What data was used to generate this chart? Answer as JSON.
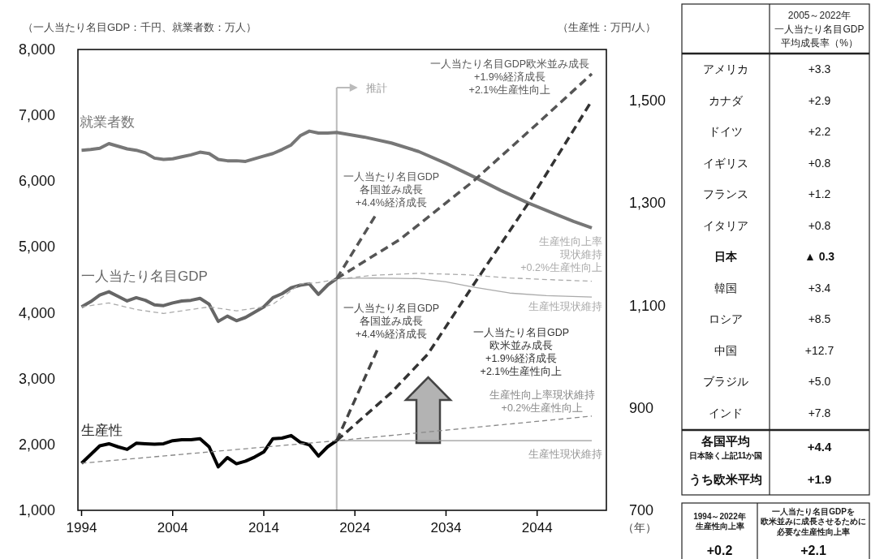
{
  "chart_data": [
    {
      "type": "line",
      "ylabel": "（一人当たり名目GDP：千円、就業者数：万人）",
      "y2label": "（生産性：万円/人）",
      "xlabel": "（年）",
      "xlim": [
        1993.6,
        2051.6
      ],
      "xticks": [
        1994,
        2004,
        2014,
        2024,
        2034,
        2044
      ],
      "ylim": [
        1000,
        8000
      ],
      "yticks": [
        {
          "value": 1000,
          "label": "1,000"
        },
        {
          "value": 2000,
          "label": "2,000"
        },
        {
          "value": 3000,
          "label": "3,000"
        },
        {
          "value": 4000,
          "label": "4,000"
        },
        {
          "value": 5000,
          "label": "5,000"
        },
        {
          "value": 6000,
          "label": "6,000"
        },
        {
          "value": 7000,
          "label": "7,000"
        },
        {
          "value": 8000,
          "label": "8,000"
        }
      ],
      "y2lim": [
        700,
        1600
      ],
      "y2ticks": [
        700,
        900,
        {
          "value": 1100,
          "label": "1,100"
        },
        {
          "value": 1300,
          "label": "1,300"
        },
        {
          "value": 1500,
          "label": "1,500"
        }
      ],
      "ref_lines": [
        {
          "axis": "x",
          "value": 2022,
          "label": "推計",
          "color": "#bbbbbb"
        }
      ],
      "series": [
        {
          "name": "就業者数",
          "color": "#777777",
          "line_style": "solid",
          "x": [
            1994,
            1995,
            1996,
            1997,
            1998,
            1999,
            2000,
            2001,
            2002,
            2003,
            2004,
            2005,
            2006,
            2007,
            2008,
            2009,
            2010,
            2011,
            2012,
            2013,
            2014,
            2015,
            2016,
            2017,
            2018,
            2019,
            2020,
            2021,
            2022,
            2025,
            2028,
            2031,
            2034,
            2037,
            2040,
            2043,
            2046,
            2048,
            2050
          ],
          "values": [
            6470,
            6480,
            6500,
            6570,
            6530,
            6490,
            6470,
            6430,
            6350,
            6330,
            6340,
            6370,
            6400,
            6440,
            6420,
            6330,
            6310,
            6310,
            6300,
            6340,
            6380,
            6420,
            6480,
            6550,
            6690,
            6760,
            6730,
            6730,
            6740,
            6670,
            6580,
            6450,
            6270,
            6070,
            5860,
            5670,
            5500,
            5390,
            5290
          ]
        },
        {
          "name": "一人当たり名目GDP",
          "color": "#666666",
          "line_style": "solid",
          "x": [
            1994,
            1995,
            1996,
            1997,
            1998,
            1999,
            2000,
            2001,
            2002,
            2003,
            2004,
            2005,
            2006,
            2007,
            2008,
            2009,
            2010,
            2011,
            2012,
            2013,
            2014,
            2015,
            2016,
            2017,
            2018,
            2019,
            2020,
            2021,
            2022
          ],
          "values": [
            4090,
            4170,
            4270,
            4320,
            4250,
            4180,
            4230,
            4190,
            4120,
            4110,
            4150,
            4180,
            4190,
            4220,
            4130,
            3870,
            3950,
            3880,
            3930,
            4010,
            4090,
            4230,
            4290,
            4380,
            4420,
            4440,
            4280,
            4420,
            4520
          ]
        },
        {
          "name": "生産性向上率現状維持+0.2%生産性向上",
          "color": "#aaaaaa",
          "line_style": "dashed",
          "x": [
            1994,
            1997,
            2000,
            2003,
            2006,
            2008,
            2011,
            2014,
            2015,
            2018,
            2020,
            2022,
            2026,
            2031,
            2036,
            2041,
            2046,
            2050
          ],
          "values": [
            4090,
            4150,
            4050,
            3990,
            4050,
            4090,
            4030,
            4090,
            4130,
            4440,
            4460,
            4510,
            4570,
            4600,
            4580,
            4530,
            4500,
            4480
          ]
        },
        {
          "name": "生産性現状維持",
          "color": "#aaaaaa",
          "line_style": "solid",
          "x": [
            2022,
            2026,
            2031,
            2034,
            2037,
            2041,
            2045,
            2050
          ],
          "values": [
            4520,
            4530,
            4520,
            4470,
            4390,
            4300,
            4260,
            4240
          ]
        },
        {
          "name": "一人当たり名目GDP各国並み成長+4.4%経済成長",
          "color": "#555555",
          "line_style": "dashed",
          "x": [
            2022,
            2026.4
          ],
          "values": [
            4520,
            5510
          ]
        },
        {
          "name": "一人当たり名目GDP欧米並み成長+1.9%経済成長+2.1%生産性向上",
          "color": "#555555",
          "line_style": "dashed",
          "x": [
            2022,
            2029,
            2037,
            2044,
            2050
          ],
          "values": [
            4520,
            5120,
            6000,
            6870,
            7630
          ]
        },
        {
          "name": "生産性",
          "color": "#000000",
          "line_style": "solid",
          "axis": "y2",
          "x": [
            1994,
            1995,
            1996,
            1997,
            1998,
            1999,
            2000,
            2001,
            2002,
            2003,
            2004,
            2005,
            2006,
            2007,
            2008,
            2009,
            2010,
            2011,
            2012,
            2013,
            2014,
            2015,
            2016,
            2017,
            2018,
            2019,
            2020,
            2021,
            2022
          ],
          "values": [
            792,
            809,
            826,
            830,
            824,
            819,
            831,
            830,
            829,
            830,
            836,
            838,
            838,
            840,
            824,
            785,
            803,
            791,
            796,
            804,
            814,
            840,
            841,
            846,
            833,
            828,
            806,
            824,
            836
          ]
        },
        {
          "name": "生産性向上率現状維持+0.2%生産性向上",
          "color": "#888888",
          "line_style": "dashed",
          "axis": "y2",
          "x": [
            1994,
            2022,
            2050
          ],
          "values": [
            792,
            836,
            884
          ]
        },
        {
          "name": "生産性現状維持",
          "color": "#999999",
          "line_style": "solid",
          "axis": "y2",
          "x": [
            2022,
            2050
          ],
          "values": [
            836,
            836
          ]
        },
        {
          "name": "一人当たり名目GDP各国並み成長+4.4%経済成長",
          "color": "#444444",
          "line_style": "dashed",
          "axis": "y2",
          "x": [
            2022,
            2026.6
          ],
          "values": [
            836,
            1019
          ]
        },
        {
          "name": "一人当たり名目GDP欧米並み成長+1.9%経済成長+2.1%生産性向上",
          "color": "#333333",
          "line_style": "dashed",
          "axis": "y2",
          "x": [
            2022,
            2028,
            2032,
            2037,
            2043,
            2050
          ],
          "values": [
            836,
            930,
            1005,
            1140,
            1299,
            1500
          ]
        }
      ]
    },
    {
      "type": "other",
      "title": "2005～2022年一人当たり名目GDP平均成長率（%）",
      "categories": [
        "アメリカ",
        "カナダ",
        "ドイツ",
        "イギリス",
        "フランス",
        "イタリア",
        "日本",
        "韓国",
        "ロシア",
        "中国",
        "ブラジル",
        "インド",
        "各国平均",
        "うち欧米平均"
      ],
      "annotations": [
        "日本除く上記11か国"
      ],
      "value_labels": [
        "+3.3",
        "+2.9",
        "+2.2",
        "+0.8",
        "+1.2",
        "+0.8",
        "▲ 0.3",
        "+3.4",
        "+8.5",
        "+12.7",
        "+5.0",
        "+7.8",
        "+4.4",
        "+1.9"
      ]
    },
    {
      "type": "other",
      "categories": [
        "1994～2022年生産性向上率",
        "一人当たり名目GDPを欧米並みに成長させるために必要な生産性向上率"
      ],
      "value_labels": [
        "+0.2",
        "+2.1"
      ]
    }
  ]
}
